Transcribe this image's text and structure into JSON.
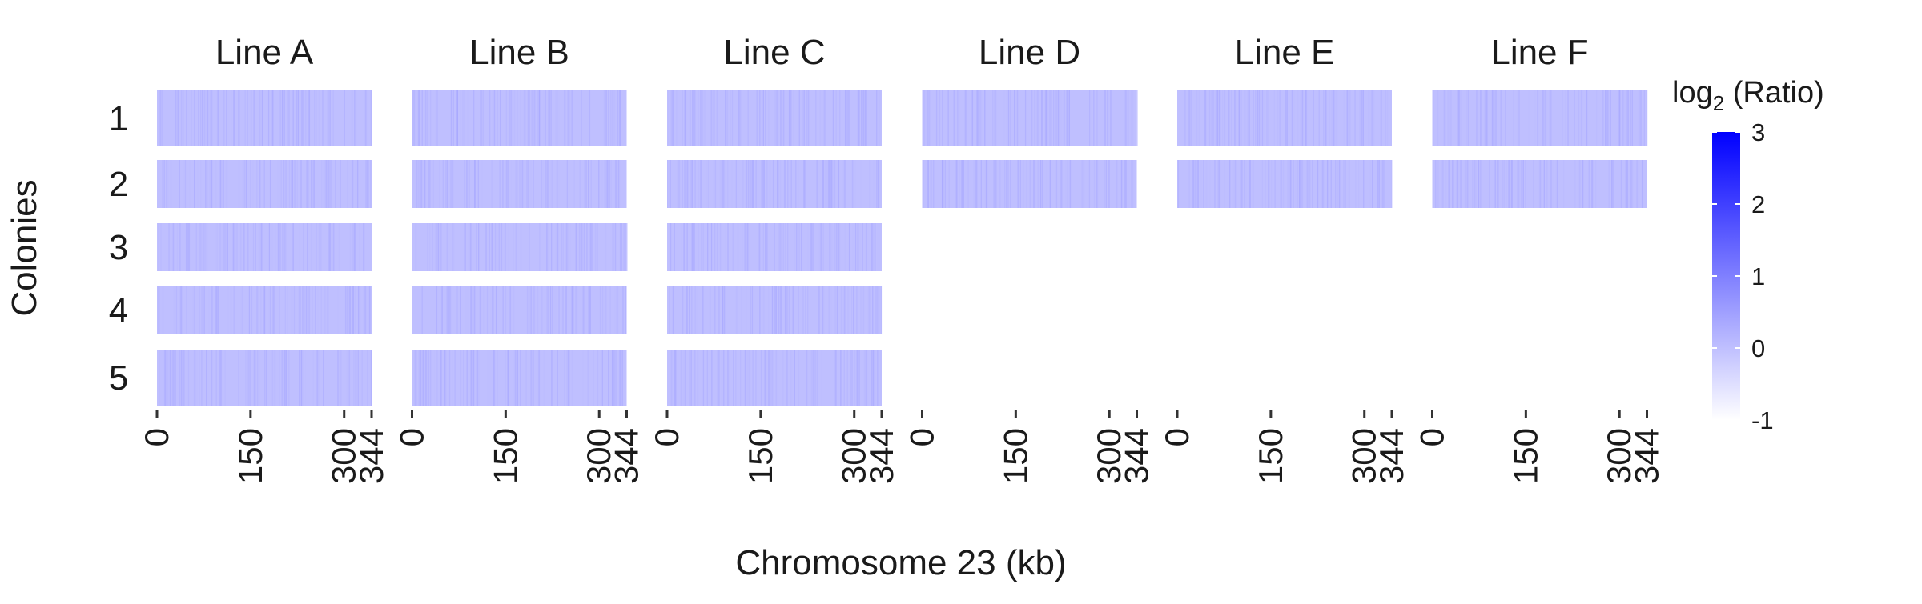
{
  "chart_data": {
    "type": "heatmap",
    "title": "",
    "xlabel": "Chromosome 23 (kb)",
    "ylabel": "Colonies",
    "facets": [
      "Line A",
      "Line B",
      "Line C",
      "Line D",
      "Line E",
      "Line F"
    ],
    "rows": [
      "1",
      "2",
      "3",
      "4",
      "5"
    ],
    "colonies_per_line": [
      5,
      5,
      5,
      2,
      2,
      2
    ],
    "x_ticks": [
      0,
      150,
      300,
      344
    ],
    "x_tick_labels": [
      "0",
      "150",
      "300",
      "344"
    ],
    "xlim": [
      0,
      344
    ],
    "approx_log2_ratio_all_cells": 0,
    "legend": {
      "title_base": "log",
      "title_subscript": "2",
      "title_suffix": " (Ratio)",
      "ticks": [
        3,
        2,
        1,
        0,
        -1
      ],
      "tick_labels": [
        "3",
        "2",
        "1",
        "0",
        "-1"
      ],
      "range": [
        -1,
        3
      ],
      "color_low": "#ffffff",
      "color_high": "#0000ff",
      "placement": "right"
    },
    "grid": false
  }
}
